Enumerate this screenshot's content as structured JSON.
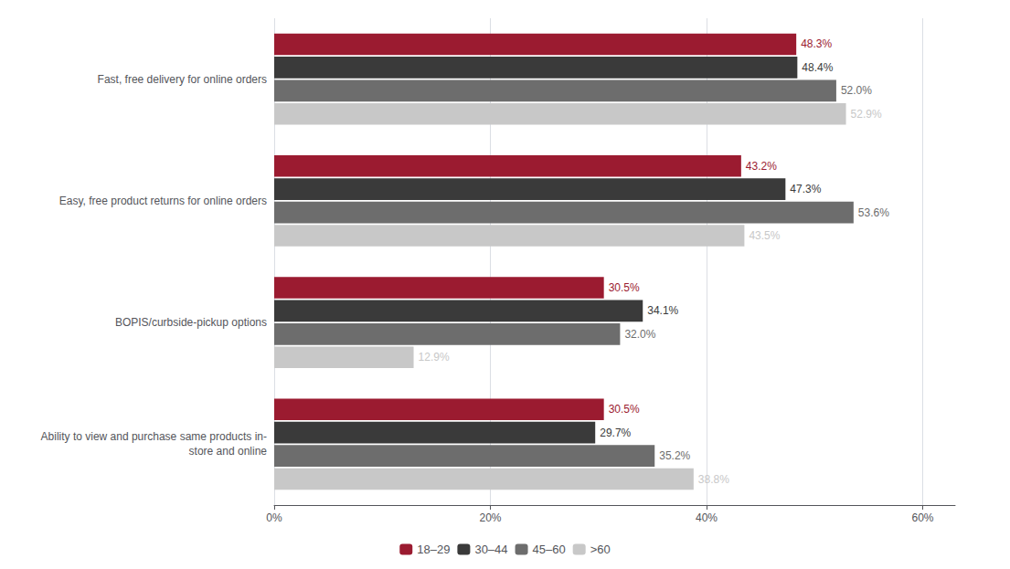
{
  "chart_data": {
    "type": "bar",
    "orientation": "horizontal",
    "categories": [
      "Fast, free delivery for online orders",
      "Easy, free product returns for online orders",
      "BOPIS/curbside-pickup options",
      "Ability to view and purchase same products in-\nstore and online"
    ],
    "series": [
      {
        "name": "18–29",
        "color": "#9b1b30",
        "values": [
          48.3,
          43.2,
          30.5,
          30.5
        ],
        "value_labels": [
          "48.3%",
          "43.2%",
          "30.5%",
          "30.5%"
        ]
      },
      {
        "name": "30–44",
        "color": "#3a3a3a",
        "values": [
          48.4,
          47.3,
          34.1,
          29.7
        ],
        "value_labels": [
          "48.4%",
          "47.3%",
          "34.1%",
          "29.7%"
        ]
      },
      {
        "name": "45–60",
        "color": "#6d6d6d",
        "values": [
          52.0,
          53.6,
          32.0,
          35.2
        ],
        "value_labels": [
          "52.0%",
          "53.6%",
          "32.0%",
          "35.2%"
        ]
      },
      {
        "name": ">60",
        "color": "#c8c8c8",
        "values": [
          52.9,
          43.5,
          12.9,
          38.8
        ],
        "value_labels": [
          "52.9%",
          "43.5%",
          "12.9%",
          "38.8%"
        ]
      }
    ],
    "xlim": [
      0,
      63
    ],
    "xticks": [
      {
        "value": 0,
        "label": "0%"
      },
      {
        "value": 20,
        "label": "20%"
      },
      {
        "value": 40,
        "label": "40%"
      },
      {
        "value": 60,
        "label": "60%"
      }
    ],
    "grid": true,
    "legend": "bottom",
    "data_labels": true
  }
}
